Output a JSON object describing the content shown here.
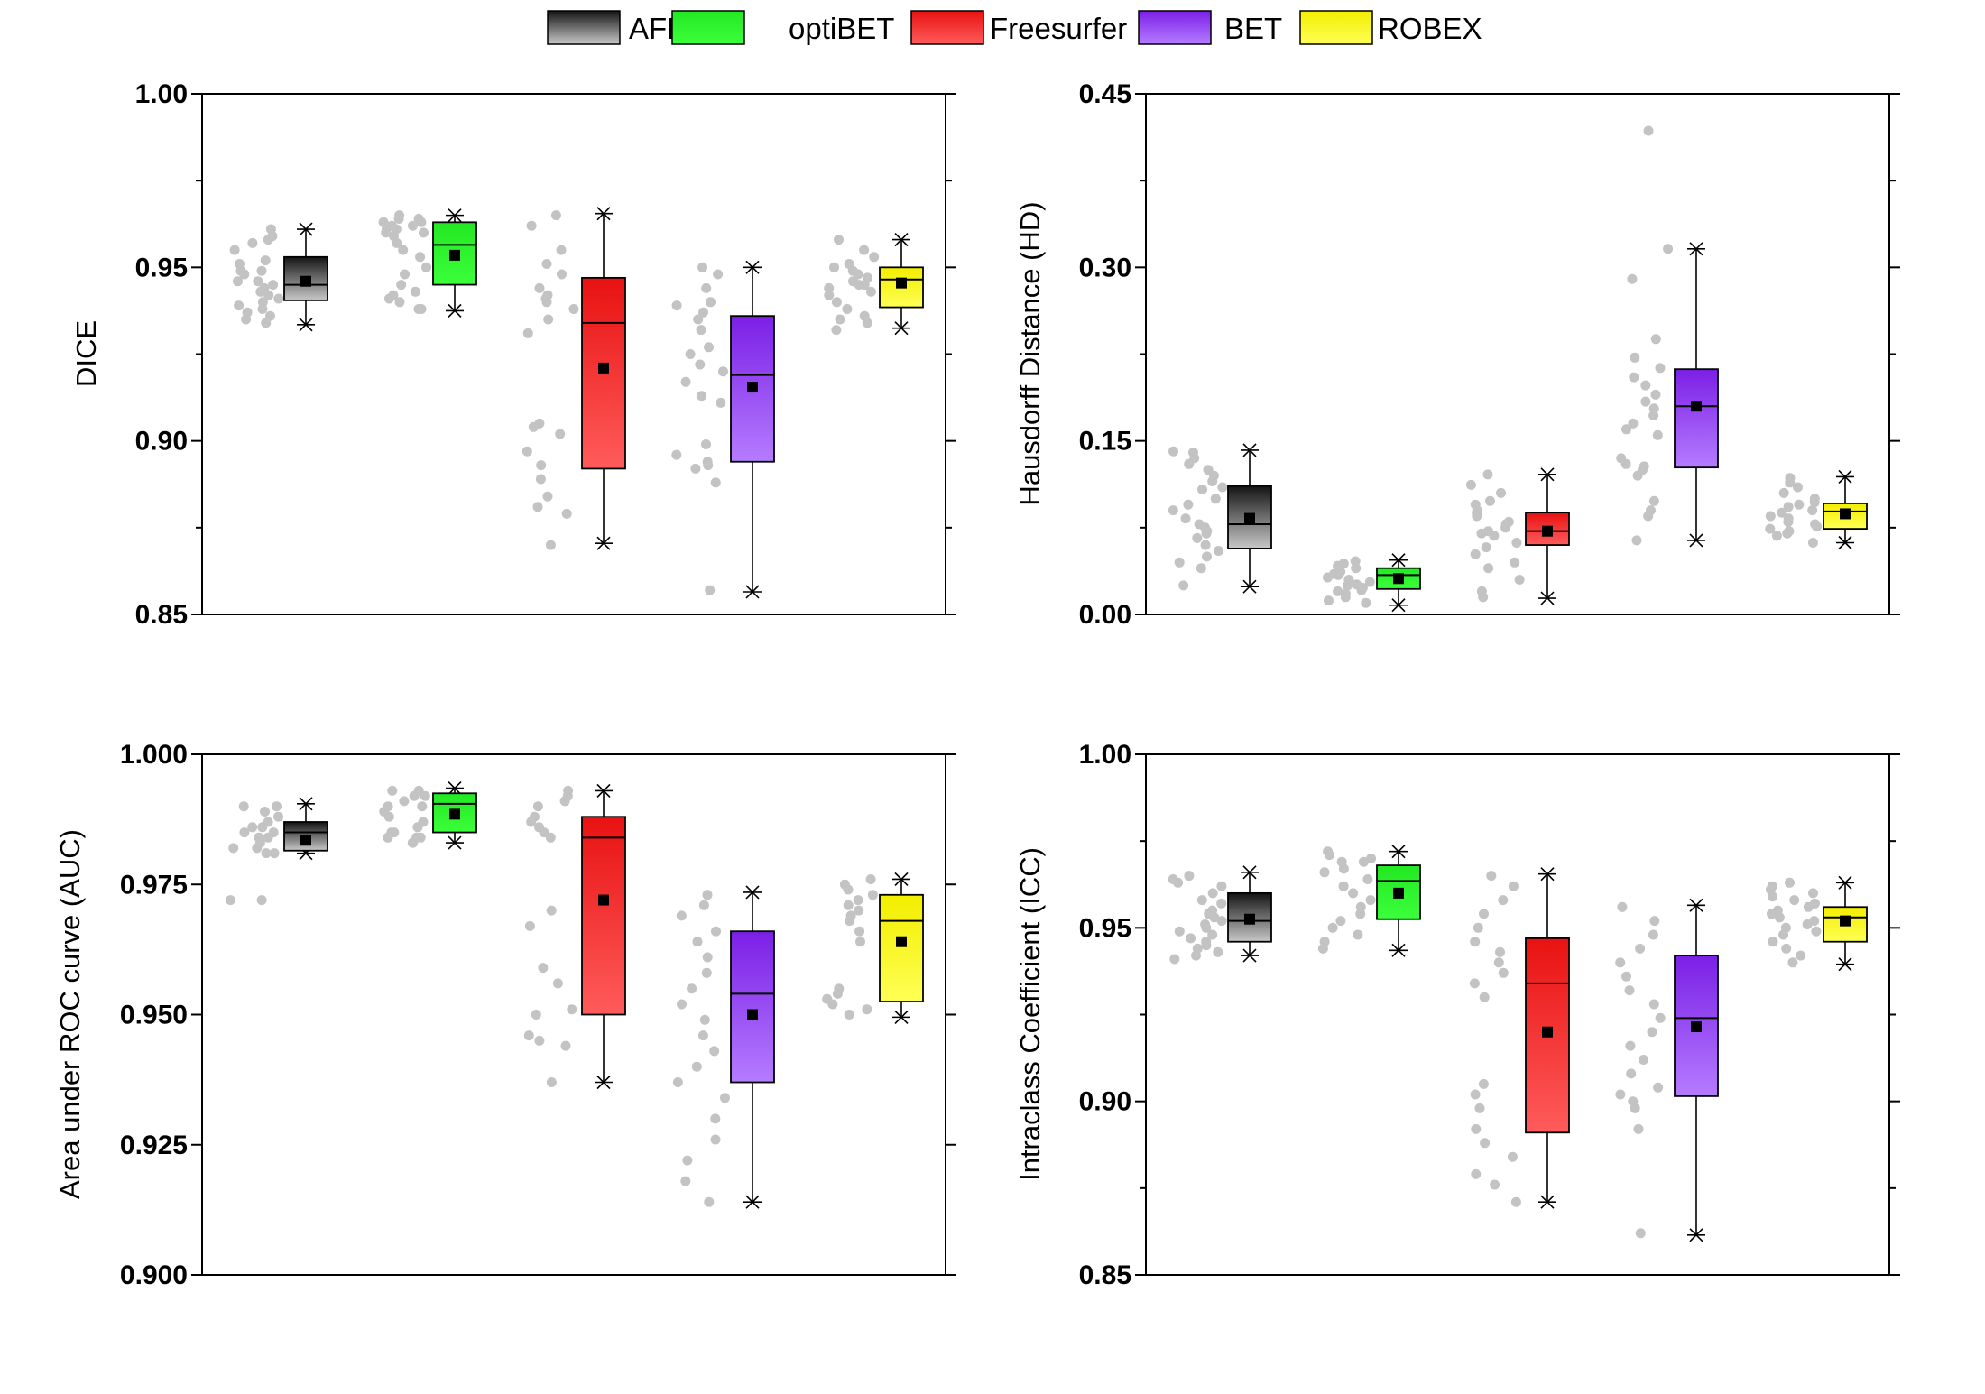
{
  "colors": {
    "AFNI": {
      "top": "#141414",
      "bottom": "#c8c8c8"
    },
    "optiBET": {
      "top": "#22e822",
      "bottom": "#3cff3c"
    },
    "Freesurfer": {
      "top": "#e81212",
      "bottom": "#ff5b5b"
    },
    "BET": {
      "top": "#7b1fe6",
      "bottom": "#b57cff"
    },
    "ROBEX": {
      "top": "#f2ee00",
      "bottom": "#ffff55"
    },
    "scatter": "#c3c3c3",
    "mean": "#000000"
  },
  "legend": [
    {
      "name": "AFNI",
      "label": "AFNI"
    },
    {
      "name": "optiBET",
      "label": "optiBET"
    },
    {
      "name": "Freesurfer",
      "label": "Freesurfer"
    },
    {
      "name": "BET",
      "label": "BET"
    },
    {
      "name": "ROBEX",
      "label": "ROBEX"
    }
  ],
  "chart_data": [
    {
      "type": "box",
      "id": "dice",
      "ylabel": "DICE",
      "ylim": [
        0.85,
        1.0
      ],
      "yticks": [
        0.85,
        0.9,
        0.95,
        1.0
      ],
      "ytick_labels": [
        "0.85",
        "0.90",
        "0.95",
        "1.00"
      ],
      "minor_ticks": [
        0.875,
        0.925,
        0.975
      ],
      "series": [
        {
          "name": "AFNI",
          "q1": 0.9405,
          "median": 0.945,
          "q3": 0.953,
          "mean": 0.946,
          "whisker_low": 0.9335,
          "whisker_high": 0.961,
          "points": [
            0.949,
            0.948,
            0.943,
            0.941,
            0.94,
            0.938,
            0.946,
            0.945,
            0.944,
            0.936,
            0.934,
            0.935,
            0.942,
            0.939,
            0.946,
            0.949,
            0.951,
            0.958,
            0.959,
            0.961,
            0.955,
            0.957,
            0.952,
            0.937
          ]
        },
        {
          "name": "optiBET",
          "q1": 0.945,
          "median": 0.9565,
          "q3": 0.963,
          "mean": 0.9535,
          "whisker_low": 0.9375,
          "whisker_high": 0.965,
          "points": [
            0.962,
            0.961,
            0.96,
            0.963,
            0.964,
            0.965,
            0.964,
            0.961,
            0.96,
            0.959,
            0.957,
            0.955,
            0.95,
            0.945,
            0.943,
            0.941,
            0.94,
            0.938,
            0.938,
            0.942,
            0.948,
            0.953,
            0.962,
            0.963
          ]
        },
        {
          "name": "Freesurfer",
          "q1": 0.892,
          "median": 0.934,
          "q3": 0.947,
          "mean": 0.921,
          "whisker_low": 0.8705,
          "whisker_high": 0.9655,
          "points": [
            0.965,
            0.962,
            0.955,
            0.951,
            0.948,
            0.944,
            0.941,
            0.94,
            0.942,
            0.938,
            0.935,
            0.931,
            0.905,
            0.904,
            0.902,
            0.897,
            0.893,
            0.889,
            0.884,
            0.881,
            0.879,
            0.87
          ]
        },
        {
          "name": "BET",
          "q1": 0.894,
          "median": 0.919,
          "q3": 0.936,
          "mean": 0.9155,
          "whisker_low": 0.8565,
          "whisker_high": 0.95,
          "points": [
            0.95,
            0.948,
            0.944,
            0.94,
            0.939,
            0.937,
            0.935,
            0.932,
            0.927,
            0.925,
            0.922,
            0.92,
            0.917,
            0.913,
            0.911,
            0.899,
            0.896,
            0.894,
            0.893,
            0.892,
            0.888,
            0.857
          ]
        },
        {
          "name": "ROBEX",
          "q1": 0.9385,
          "median": 0.9465,
          "q3": 0.95,
          "mean": 0.9455,
          "whisker_low": 0.9325,
          "whisker_high": 0.958,
          "points": [
            0.958,
            0.955,
            0.953,
            0.951,
            0.95,
            0.949,
            0.948,
            0.947,
            0.946,
            0.945,
            0.944,
            0.943,
            0.942,
            0.94,
            0.938,
            0.936,
            0.935,
            0.934,
            0.932,
            0.945
          ]
        }
      ]
    },
    {
      "type": "box",
      "id": "hd",
      "ylabel": "Hausdorff Distance (HD)",
      "ylim": [
        0.0,
        0.45
      ],
      "yticks": [
        0.0,
        0.15,
        0.3,
        0.45
      ],
      "ytick_labels": [
        "0.00",
        "0.15",
        "0.30",
        "0.45"
      ],
      "minor_ticks": [
        0.075,
        0.225,
        0.375
      ],
      "series": [
        {
          "name": "AFNI",
          "q1": 0.057,
          "median": 0.078,
          "q3": 0.111,
          "mean": 0.083,
          "whisker_low": 0.024,
          "whisker_high": 0.142,
          "points": [
            0.14,
            0.135,
            0.141,
            0.13,
            0.125,
            0.12,
            0.115,
            0.11,
            0.108,
            0.1,
            0.095,
            0.09,
            0.083,
            0.078,
            0.075,
            0.072,
            0.07,
            0.066,
            0.06,
            0.055,
            0.05,
            0.045,
            0.04,
            0.025
          ]
        },
        {
          "name": "optiBET",
          "q1": 0.022,
          "median": 0.034,
          "q3": 0.04,
          "mean": 0.031,
          "whisker_low": 0.008,
          "whisker_high": 0.047,
          "points": [
            0.046,
            0.044,
            0.042,
            0.04,
            0.038,
            0.037,
            0.035,
            0.034,
            0.032,
            0.03,
            0.028,
            0.026,
            0.025,
            0.023,
            0.021,
            0.02,
            0.018,
            0.015,
            0.012,
            0.01
          ]
        },
        {
          "name": "Freesurfer",
          "q1": 0.06,
          "median": 0.072,
          "q3": 0.088,
          "mean": 0.072,
          "whisker_low": 0.014,
          "whisker_high": 0.121,
          "points": [
            0.121,
            0.112,
            0.105,
            0.098,
            0.095,
            0.09,
            0.088,
            0.085,
            0.08,
            0.078,
            0.075,
            0.072,
            0.07,
            0.068,
            0.062,
            0.058,
            0.052,
            0.045,
            0.04,
            0.03,
            0.02,
            0.015
          ]
        },
        {
          "name": "BET",
          "q1": 0.127,
          "median": 0.18,
          "q3": 0.212,
          "mean": 0.18,
          "whisker_low": 0.064,
          "whisker_high": 0.316,
          "points": [
            0.418,
            0.316,
            0.29,
            0.238,
            0.222,
            0.213,
            0.205,
            0.198,
            0.19,
            0.184,
            0.178,
            0.172,
            0.165,
            0.16,
            0.155,
            0.135,
            0.13,
            0.128,
            0.125,
            0.12,
            0.098,
            0.09,
            0.085,
            0.064
          ]
        },
        {
          "name": "ROBEX",
          "q1": 0.074,
          "median": 0.089,
          "q3": 0.096,
          "mean": 0.087,
          "whisker_low": 0.062,
          "whisker_high": 0.119,
          "points": [
            0.118,
            0.114,
            0.11,
            0.105,
            0.1,
            0.097,
            0.095,
            0.093,
            0.09,
            0.088,
            0.085,
            0.083,
            0.08,
            0.078,
            0.076,
            0.074,
            0.072,
            0.07,
            0.068,
            0.062
          ]
        }
      ]
    },
    {
      "type": "box",
      "id": "auc",
      "ylabel": "Area under ROC curve (AUC)",
      "ylim": [
        0.9,
        1.0
      ],
      "yticks": [
        0.9,
        0.925,
        0.95,
        0.975,
        1.0
      ],
      "ytick_labels": [
        "0.900",
        "0.925",
        "0.950",
        "0.975",
        "1.000"
      ],
      "minor_ticks": [],
      "series": [
        {
          "name": "AFNI",
          "q1": 0.9815,
          "median": 0.985,
          "q3": 0.987,
          "mean": 0.9835,
          "whisker_low": 0.981,
          "whisker_high": 0.9905,
          "points": [
            0.99,
            0.99,
            0.989,
            0.988,
            0.987,
            0.986,
            0.986,
            0.985,
            0.985,
            0.984,
            0.984,
            0.983,
            0.982,
            0.982,
            0.981,
            0.981,
            0.972,
            0.972
          ]
        },
        {
          "name": "optiBET",
          "q1": 0.985,
          "median": 0.9905,
          "q3": 0.9925,
          "mean": 0.9885,
          "whisker_low": 0.983,
          "whisker_high": 0.9935,
          "points": [
            0.993,
            0.993,
            0.992,
            0.992,
            0.991,
            0.99,
            0.99,
            0.989,
            0.988,
            0.987,
            0.986,
            0.985,
            0.985,
            0.984,
            0.984,
            0.983,
            0.983,
            0.984
          ]
        },
        {
          "name": "Freesurfer",
          "q1": 0.95,
          "median": 0.984,
          "q3": 0.988,
          "mean": 0.972,
          "whisker_low": 0.937,
          "whisker_high": 0.993,
          "points": [
            0.993,
            0.992,
            0.991,
            0.99,
            0.988,
            0.987,
            0.986,
            0.985,
            0.984,
            0.97,
            0.967,
            0.959,
            0.956,
            0.951,
            0.95,
            0.946,
            0.945,
            0.944,
            0.937
          ]
        },
        {
          "name": "BET",
          "q1": 0.937,
          "median": 0.954,
          "q3": 0.966,
          "mean": 0.95,
          "whisker_low": 0.914,
          "whisker_high": 0.9735,
          "points": [
            0.973,
            0.971,
            0.969,
            0.966,
            0.964,
            0.961,
            0.958,
            0.955,
            0.952,
            0.949,
            0.946,
            0.943,
            0.94,
            0.937,
            0.934,
            0.93,
            0.926,
            0.922,
            0.918,
            0.914
          ]
        },
        {
          "name": "ROBEX",
          "q1": 0.9525,
          "median": 0.968,
          "q3": 0.973,
          "mean": 0.964,
          "whisker_low": 0.9495,
          "whisker_high": 0.976,
          "points": [
            0.976,
            0.975,
            0.974,
            0.973,
            0.972,
            0.971,
            0.97,
            0.969,
            0.968,
            0.966,
            0.964,
            0.955,
            0.954,
            0.953,
            0.952,
            0.951,
            0.95
          ]
        }
      ]
    },
    {
      "type": "box",
      "id": "icc",
      "ylabel": "Intraclass Coefficient (ICC)",
      "ylim": [
        0.85,
        1.0
      ],
      "yticks": [
        0.85,
        0.9,
        0.95,
        1.0
      ],
      "ytick_labels": [
        "0.85",
        "0.90",
        "0.95",
        "1.00"
      ],
      "minor_ticks": [
        0.875,
        0.925,
        0.975
      ],
      "series": [
        {
          "name": "AFNI",
          "q1": 0.946,
          "median": 0.952,
          "q3": 0.96,
          "mean": 0.9525,
          "whisker_low": 0.942,
          "whisker_high": 0.966,
          "points": [
            0.965,
            0.964,
            0.963,
            0.962,
            0.96,
            0.958,
            0.957,
            0.955,
            0.954,
            0.953,
            0.952,
            0.951,
            0.95,
            0.949,
            0.948,
            0.947,
            0.946,
            0.944,
            0.943,
            0.942,
            0.941,
            0.945
          ]
        },
        {
          "name": "optiBET",
          "q1": 0.9525,
          "median": 0.9635,
          "q3": 0.968,
          "mean": 0.96,
          "whisker_low": 0.9435,
          "whisker_high": 0.972,
          "points": [
            0.972,
            0.971,
            0.97,
            0.969,
            0.967,
            0.966,
            0.964,
            0.962,
            0.96,
            0.958,
            0.956,
            0.954,
            0.952,
            0.95,
            0.948,
            0.946,
            0.944,
            0.969
          ]
        },
        {
          "name": "Freesurfer",
          "q1": 0.891,
          "median": 0.934,
          "q3": 0.947,
          "mean": 0.92,
          "whisker_low": 0.871,
          "whisker_high": 0.9655,
          "points": [
            0.965,
            0.962,
            0.958,
            0.954,
            0.95,
            0.946,
            0.943,
            0.94,
            0.937,
            0.934,
            0.93,
            0.905,
            0.902,
            0.898,
            0.892,
            0.888,
            0.884,
            0.879,
            0.876,
            0.871
          ]
        },
        {
          "name": "BET",
          "q1": 0.9015,
          "median": 0.924,
          "q3": 0.942,
          "mean": 0.9215,
          "whisker_low": 0.8615,
          "whisker_high": 0.9565,
          "points": [
            0.956,
            0.952,
            0.948,
            0.944,
            0.94,
            0.936,
            0.932,
            0.928,
            0.924,
            0.92,
            0.916,
            0.912,
            0.908,
            0.904,
            0.902,
            0.9,
            0.898,
            0.892,
            0.862
          ]
        },
        {
          "name": "ROBEX",
          "q1": 0.946,
          "median": 0.953,
          "q3": 0.956,
          "mean": 0.952,
          "whisker_low": 0.9395,
          "whisker_high": 0.963,
          "points": [
            0.963,
            0.962,
            0.961,
            0.96,
            0.959,
            0.958,
            0.957,
            0.956,
            0.955,
            0.954,
            0.953,
            0.952,
            0.951,
            0.95,
            0.949,
            0.948,
            0.946,
            0.944,
            0.942,
            0.94
          ]
        }
      ]
    }
  ]
}
